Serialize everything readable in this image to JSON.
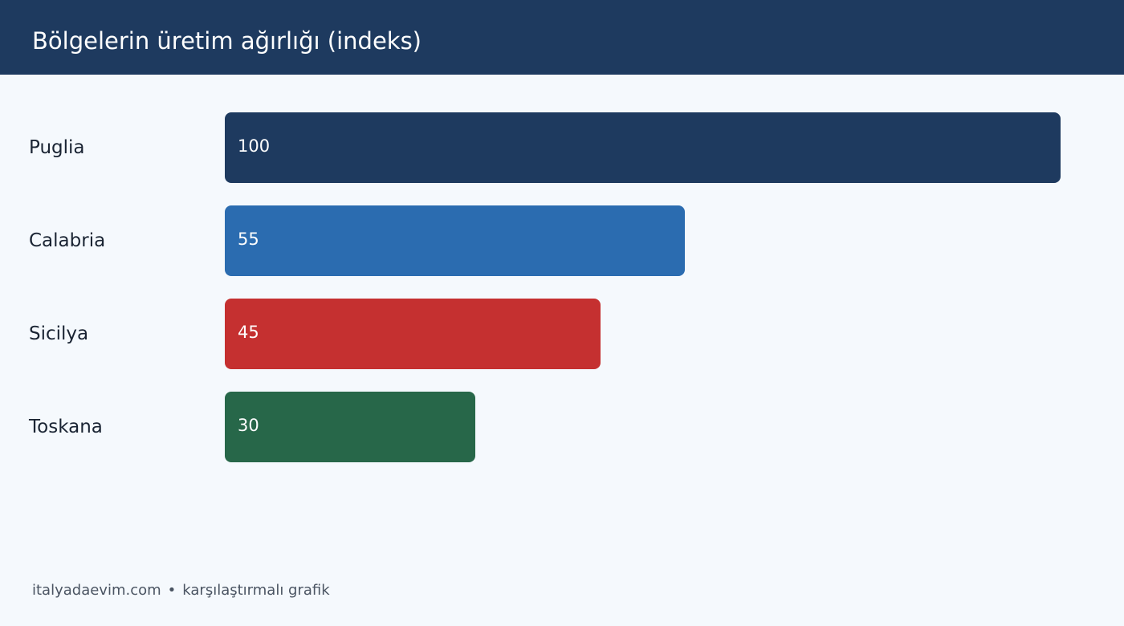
{
  "header": {
    "title": "Bölgelerin üretim ağırlığı (indeks)",
    "background": "#1e3a5f"
  },
  "chart_data": {
    "type": "bar",
    "orientation": "horizontal",
    "title": "Bölgelerin üretim ağırlığı (indeks)",
    "xlabel": "",
    "ylabel": "",
    "xlim": [
      0,
      100
    ],
    "grid": false,
    "categories": [
      "Puglia",
      "Calabria",
      "Sicilya",
      "Toskana"
    ],
    "values": [
      100,
      55,
      45,
      30
    ],
    "colors": [
      "#1e3a5f",
      "#2b6cb0",
      "#c53030",
      "#276749"
    ],
    "data_labels": [
      "100",
      "55",
      "45",
      "30"
    ]
  },
  "footer": {
    "site": "italyadaevim.com",
    "separator": "•",
    "caption": "karşılaştırmalı grafik"
  }
}
